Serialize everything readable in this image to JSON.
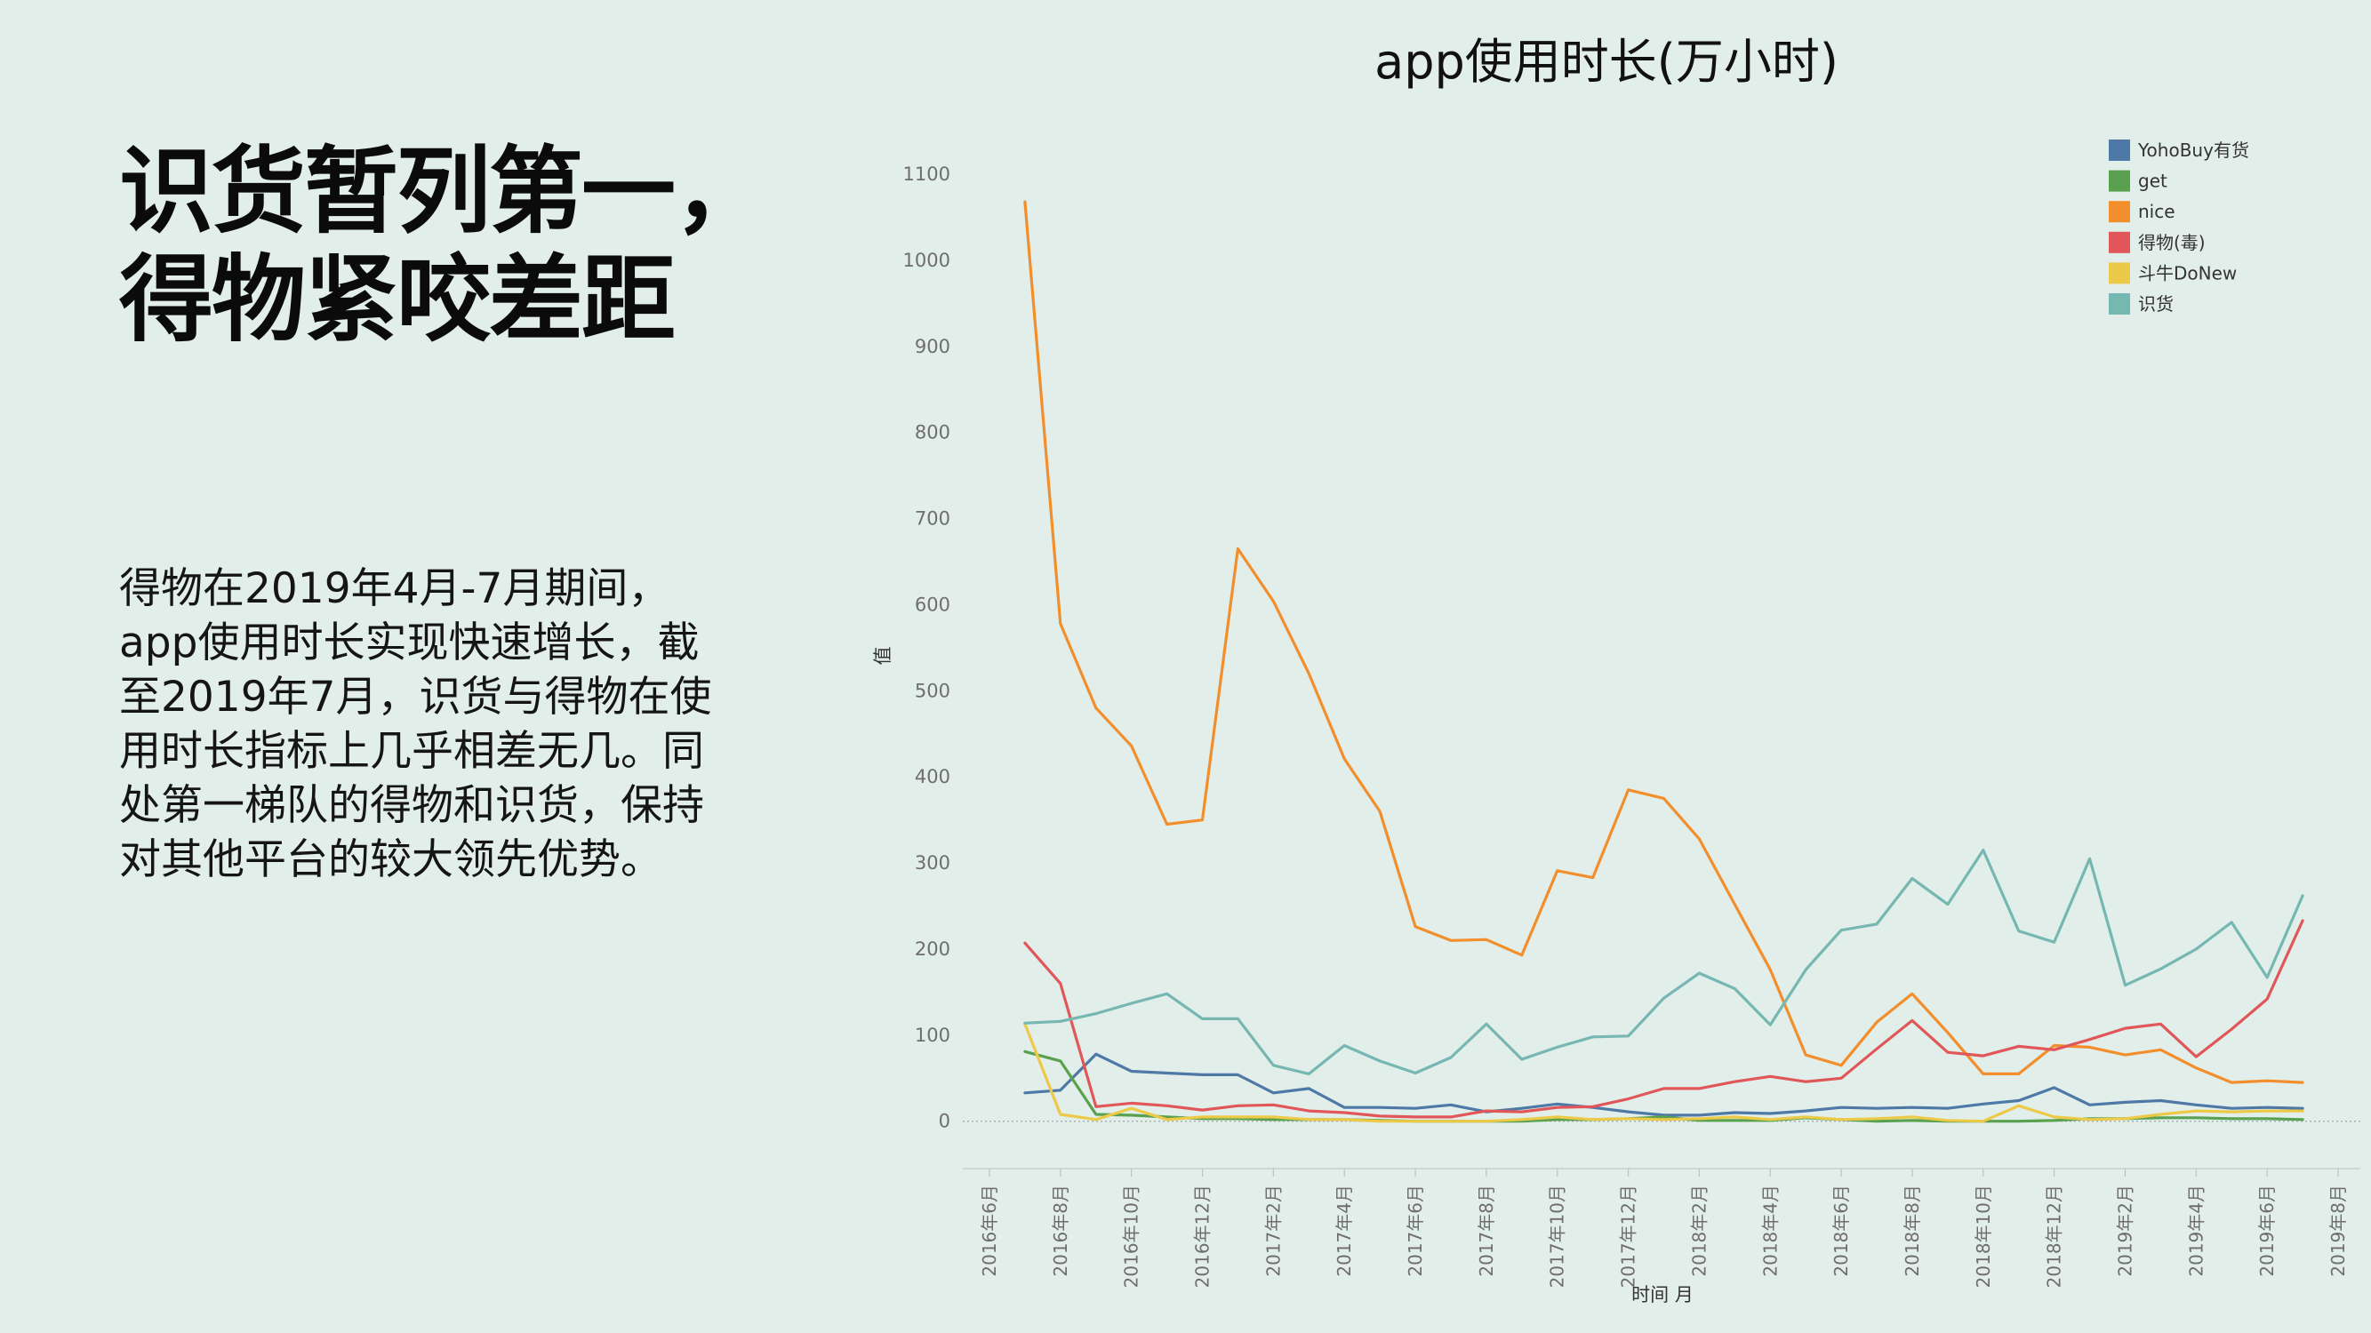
{
  "headline": {
    "lines": [
      "识货暂列第一，",
      "得物紧咬差距"
    ]
  },
  "description": {
    "lines": [
      "得物在2019年4月-7月期间，",
      "app使用时长实现快速增长，截",
      "至2019年7月，识货与得物在使",
      "用时长指标上几乎相差无几。同",
      "处第一梯队的得物和识货，保持",
      "对其他平台的较大领先优势。"
    ]
  },
  "chart_data": {
    "type": "line",
    "title": "app使用时长(万小时)",
    "xlabel": "时间 月",
    "ylabel": "值",
    "ylim": [
      -55,
      1160
    ],
    "yticks": [
      0,
      100,
      200,
      300,
      400,
      500,
      600,
      700,
      800,
      900,
      1000,
      1100
    ],
    "xlim": [
      0,
      38
    ],
    "xticks": [
      {
        "pos": 0,
        "label": "2016年6月"
      },
      {
        "pos": 2,
        "label": "2016年8月"
      },
      {
        "pos": 4,
        "label": "2016年10月"
      },
      {
        "pos": 6,
        "label": "2016年12月"
      },
      {
        "pos": 8,
        "label": "2017年2月"
      },
      {
        "pos": 10,
        "label": "2017年4月"
      },
      {
        "pos": 12,
        "label": "2017年6月"
      },
      {
        "pos": 14,
        "label": "2017年8月"
      },
      {
        "pos": 16,
        "label": "2017年10月"
      },
      {
        "pos": 18,
        "label": "2017年12月"
      },
      {
        "pos": 20,
        "label": "2018年2月"
      },
      {
        "pos": 22,
        "label": "2018年4月"
      },
      {
        "pos": 24,
        "label": "2018年6月"
      },
      {
        "pos": 26,
        "label": "2018年8月"
      },
      {
        "pos": 28,
        "label": "2018年10月"
      },
      {
        "pos": 30,
        "label": "2018年12月"
      },
      {
        "pos": 32,
        "label": "2019年2月"
      },
      {
        "pos": 34,
        "label": "2019年4月"
      },
      {
        "pos": 36,
        "label": "2019年6月"
      },
      {
        "pos": 38,
        "label": "2019年8月"
      }
    ],
    "x": [
      1,
      2,
      3,
      4,
      5,
      6,
      7,
      8,
      9,
      10,
      11,
      12,
      13,
      14,
      15,
      16,
      17,
      18,
      19,
      20,
      21,
      22,
      23,
      24,
      25,
      26,
      27,
      28,
      29,
      30,
      31,
      32,
      33,
      34,
      35,
      36,
      37
    ],
    "grid": false,
    "legend_position": "top-right",
    "series": [
      {
        "name": "YohoBuy有货",
        "color": "#4e79a7",
        "values": [
          33,
          36,
          78,
          58,
          56,
          54,
          54,
          33,
          38,
          16,
          16,
          15,
          19,
          11,
          15,
          20,
          16,
          11,
          7,
          7,
          10,
          9,
          12,
          16,
          15,
          16,
          15,
          20,
          24,
          39,
          19,
          22,
          24,
          19,
          15,
          16,
          15
        ]
      },
      {
        "name": "get",
        "color": "#59a14f",
        "values": [
          81,
          70,
          8,
          7,
          5,
          3,
          3,
          2,
          2,
          2,
          1,
          0,
          0,
          0,
          0,
          2,
          2,
          3,
          5,
          1,
          1,
          1,
          4,
          2,
          0,
          1,
          0,
          0,
          0,
          1,
          3,
          3,
          4,
          4,
          3,
          3,
          2
        ]
      },
      {
        "name": "nice",
        "color": "#f28e2b",
        "values": [
          1068,
          578,
          480,
          436,
          345,
          350,
          665,
          604,
          520,
          421,
          360,
          226,
          210,
          211,
          193,
          291,
          283,
          385,
          375,
          328,
          252,
          176,
          77,
          65,
          115,
          148,
          103,
          55,
          55,
          88,
          86,
          77,
          83,
          62,
          45,
          47,
          45
        ]
      },
      {
        "name": "得物(毒)",
        "color": "#e15759",
        "values": [
          207,
          160,
          17,
          21,
          18,
          13,
          18,
          19,
          12,
          10,
          6,
          5,
          5,
          12,
          11,
          16,
          17,
          26,
          38,
          38,
          46,
          52,
          46,
          50,
          84,
          117,
          80,
          76,
          87,
          83,
          95,
          108,
          113,
          75,
          107,
          142,
          233
        ]
      },
      {
        "name": "斗牛DoNew",
        "color": "#edc948",
        "values": [
          113,
          8,
          2,
          15,
          2,
          5,
          5,
          5,
          2,
          2,
          0,
          0,
          0,
          0,
          2,
          5,
          2,
          3,
          2,
          3,
          5,
          2,
          5,
          2,
          3,
          5,
          1,
          0,
          18,
          5,
          2,
          3,
          8,
          12,
          11,
          12,
          12
        ]
      },
      {
        "name": "识货",
        "color": "#76b7b2",
        "values": [
          114,
          116,
          125,
          137,
          148,
          119,
          119,
          65,
          55,
          88,
          70,
          56,
          74,
          113,
          72,
          86,
          98,
          99,
          143,
          172,
          154,
          112,
          176,
          222,
          229,
          282,
          252,
          315,
          221,
          208,
          305,
          158,
          177,
          200,
          231,
          167,
          262
        ]
      }
    ]
  }
}
